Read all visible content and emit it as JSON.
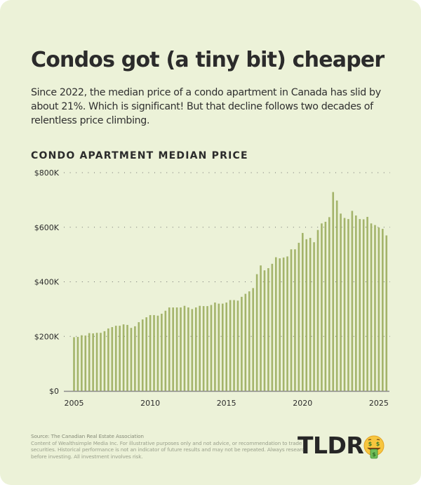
{
  "header": {
    "title": "Condos got (a tiny bit) cheaper",
    "subtitle": "Since 2022, the median price of a condo apartment in Canada has slid by about 21%. Which is significant! But that decline follows two decades of relentless price climbing."
  },
  "chart_data": {
    "type": "bar",
    "title": "CONDO APARTMENT MEDIAN PRICE",
    "xlabel": "",
    "ylabel": "",
    "frequency": "quarterly",
    "start": "2005 Q1",
    "end": "2025 Q3",
    "units": "thousands CAD",
    "ylim": [
      0,
      800
    ],
    "yticks": [
      0,
      200,
      400,
      600,
      800
    ],
    "ytick_labels": [
      "$0",
      "$200K",
      "$400K",
      "$600K",
      "$800K"
    ],
    "xticks": [
      2005,
      2010,
      2015,
      2020,
      2025
    ],
    "xtick_labels": [
      "2005",
      "2010",
      "2015",
      "2020",
      "2025"
    ],
    "grid": "horizontal dotted",
    "values": [
      197,
      198,
      204,
      203,
      212,
      211,
      213,
      213,
      219,
      229,
      234,
      239,
      239,
      244,
      242,
      231,
      237,
      252,
      262,
      270,
      278,
      278,
      276,
      283,
      294,
      306,
      306,
      306,
      306,
      312,
      306,
      300,
      306,
      312,
      311,
      311,
      315,
      324,
      320,
      320,
      324,
      333,
      333,
      331,
      345,
      356,
      365,
      377,
      428,
      460,
      442,
      450,
      466,
      490,
      486,
      489,
      493,
      519,
      519,
      543,
      579,
      556,
      561,
      545,
      590,
      614,
      620,
      637,
      729,
      698,
      650,
      634,
      630,
      660,
      643,
      630,
      629,
      638,
      614,
      608,
      599,
      594,
      570
    ],
    "colors": {
      "bar": "#a4b46b",
      "background": "#ecf2d8",
      "axis": "#8a8a8a",
      "grid": "#6e6e6e"
    }
  },
  "footer": {
    "source": "Source: The Canadian Real Estate Association",
    "disclaimer": "Content of Wealthsimple Media Inc. For illustrative purposes only and not advice, or recommendation to trade securities. Historical performance is not an indicator of future results and may not be repeated. Always research before investing. All investment involves risk."
  },
  "brand": {
    "logo_text": "TLDR",
    "logo_icon": "money-mouth-face-icon"
  }
}
